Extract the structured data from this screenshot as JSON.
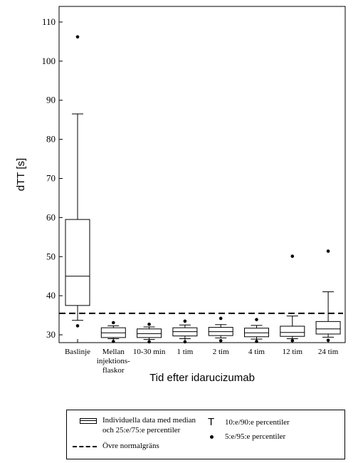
{
  "chart_data": {
    "type": "box",
    "ylabel": "dTT [s]",
    "xlabel": "Tid efter idarucizumab",
    "ylim": [
      28,
      114
    ],
    "yticks": [
      30,
      40,
      50,
      60,
      70,
      80,
      90,
      100,
      110
    ],
    "reference_line": 35.5,
    "categories": [
      {
        "lines": [
          "Baslinje"
        ]
      },
      {
        "lines": [
          "Mellan",
          "injektions-",
          "flaskor"
        ]
      },
      {
        "lines": [
          "10-30 min"
        ]
      },
      {
        "lines": [
          "1 tim"
        ]
      },
      {
        "lines": [
          "2 tim"
        ]
      },
      {
        "lines": [
          "4 tim"
        ]
      },
      {
        "lines": [
          "12 tim"
        ]
      },
      {
        "lines": [
          "24 tim"
        ]
      }
    ],
    "boxes": [
      {
        "p10": 33.7,
        "q1": 37.5,
        "median": 45.0,
        "q3": 59.5,
        "p90": 86.5,
        "outliers": [
          32.3,
          106.2
        ]
      },
      {
        "p10": 29.0,
        "q1": 29.3,
        "median": 30.5,
        "q3": 31.8,
        "p90": 32.3,
        "outliers": [
          28.3,
          33.1
        ]
      },
      {
        "p10": 28.8,
        "q1": 29.3,
        "median": 30.3,
        "q3": 31.5,
        "p90": 32.0,
        "outliers": [
          28.2,
          32.7
        ]
      },
      {
        "p10": 29.0,
        "q1": 29.7,
        "median": 30.8,
        "q3": 31.8,
        "p90": 32.5,
        "outliers": [
          28.2,
          33.5
        ]
      },
      {
        "p10": 29.2,
        "q1": 29.8,
        "median": 30.8,
        "q3": 31.9,
        "p90": 32.6,
        "outliers": [
          28.5,
          34.2
        ]
      },
      {
        "p10": 28.9,
        "q1": 29.5,
        "median": 30.5,
        "q3": 31.7,
        "p90": 32.4,
        "outliers": [
          28.3,
          33.9
        ]
      },
      {
        "p10": 29.0,
        "q1": 29.6,
        "median": 30.6,
        "q3": 32.2,
        "p90": 34.8,
        "outliers": [
          28.5,
          50.1
        ]
      },
      {
        "p10": 29.4,
        "q1": 30.2,
        "median": 31.5,
        "q3": 33.4,
        "p90": 41.0,
        "outliers": [
          28.6,
          51.4
        ]
      }
    ]
  },
  "legend": {
    "box_label_line1": "Individuella data med median",
    "box_label_line2": "och 25:e/75:e percentiler",
    "dash_label": "Övre normalgräns",
    "whisker_symbol": "T",
    "whisker_label": "10:e/90:e percentiler",
    "dot_label": "5:e/95:e percentiler"
  }
}
